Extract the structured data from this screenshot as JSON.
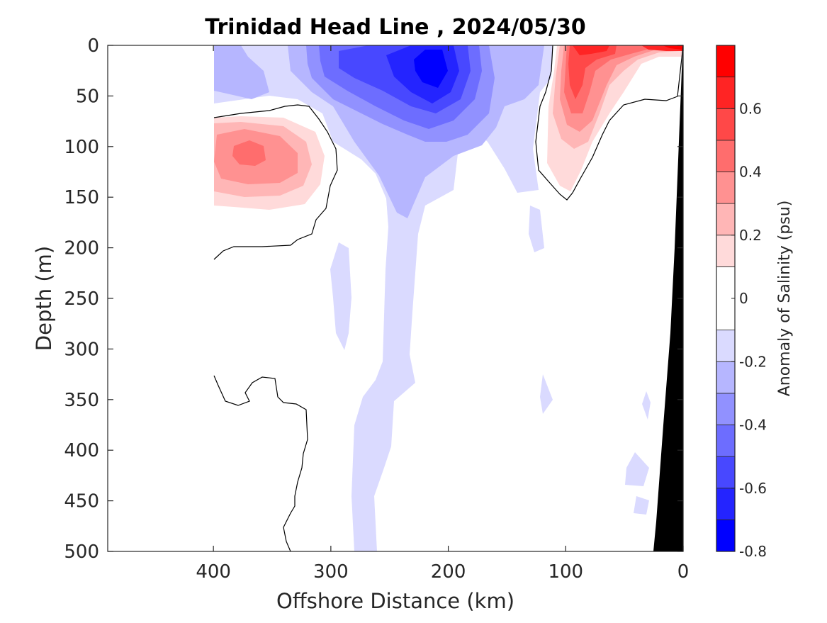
{
  "chart_data": {
    "type": "contour",
    "title": "Trinidad Head Line , 2024/05/30",
    "xlabel": "Offshore Distance (km)",
    "ylabel": "Depth (m)",
    "x_reversed": true,
    "y_reversed": true,
    "xlim": [
      490,
      0
    ],
    "ylim": [
      0,
      500
    ],
    "x_ticks": [
      400,
      300,
      200,
      100,
      0
    ],
    "x_tick_labels": [
      "400",
      "300",
      "200",
      "100",
      "0"
    ],
    "y_ticks": [
      0,
      50,
      100,
      150,
      200,
      250,
      300,
      350,
      400,
      450,
      500
    ],
    "y_tick_labels": [
      "0",
      "50",
      "100",
      "150",
      "200",
      "250",
      "300",
      "350",
      "400",
      "450",
      "500"
    ],
    "colorbar": {
      "label": "Anomaly of Salinity (psu)",
      "range": [
        -0.8,
        0.8
      ],
      "ticks": [
        0.6,
        0.4,
        0.2,
        0,
        -0.2,
        -0.4,
        -0.6,
        -0.8
      ],
      "tick_labels": [
        "0.6",
        "0.4",
        "0.2",
        "0",
        "-0.2",
        "-0.4",
        "-0.6",
        "-0.8"
      ],
      "levels": [
        -0.8,
        -0.7,
        -0.6,
        -0.5,
        -0.4,
        -0.3,
        -0.2,
        -0.1,
        0.1,
        0.2,
        0.3,
        0.4,
        0.5,
        0.6,
        0.7,
        0.8
      ],
      "colors_bottom_to_top": [
        "#0000ff",
        "#2424ff",
        "#4848ff",
        "#6d6dff",
        "#9191ff",
        "#b6b6ff",
        "#dadaff",
        "#ffffff",
        "#ffdada",
        "#ffb6b6",
        "#ff9191",
        "#ff6d6d",
        "#ff4848",
        "#ff2424",
        "#ff0000"
      ]
    },
    "data_x_extent": [
      400,
      0
    ],
    "bottom_mask_color": "#000000",
    "bottom_profile": [
      [
        0,
        0
      ],
      [
        2,
        50
      ],
      [
        10,
        100
      ],
      [
        13,
        200
      ],
      [
        17,
        300
      ],
      [
        22,
        400
      ],
      [
        26,
        500
      ]
    ],
    "features": [
      {
        "name": "fresh-core-nearshore-upper",
        "center_km": 215,
        "center_depth_m": 20,
        "min_anomaly": -0.7
      },
      {
        "name": "fresh-tongue-deep",
        "center_km": 260,
        "center_depth_m": 350,
        "min_anomaly": -0.2
      },
      {
        "name": "salty-eddy-offshore",
        "center_km": 370,
        "center_depth_m": 110,
        "max_anomaly": 0.5
      },
      {
        "name": "salty-nearshore-surface",
        "center_km": 90,
        "center_depth_m": 40,
        "max_anomaly": 0.7
      }
    ]
  }
}
